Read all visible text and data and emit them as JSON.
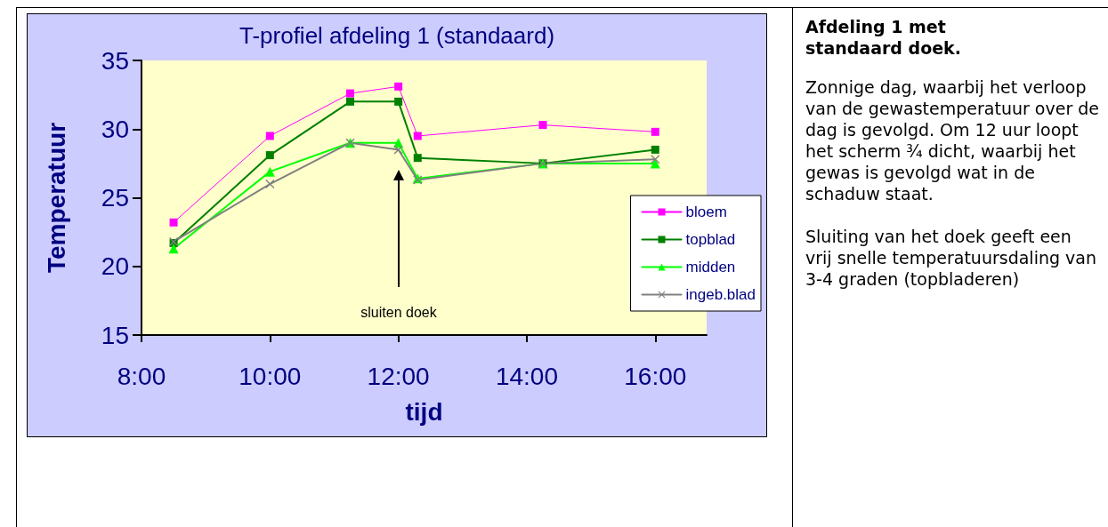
{
  "chart_data": {
    "type": "line",
    "title": "T-profiel afdeling 1 (standaard)",
    "xlabel": "tijd",
    "ylabel": "Temperatuur",
    "x": [
      8.5,
      10,
      11.25,
      12,
      12.3,
      14.25,
      16
    ],
    "series": [
      {
        "name": "bloem",
        "color": "#ff00ff",
        "marker": "square",
        "values": [
          23.2,
          29.5,
          32.6,
          33.1,
          29.5,
          30.3,
          29.8
        ]
      },
      {
        "name": "topblad",
        "color": "#008000",
        "marker": "square",
        "values": [
          21.7,
          28.1,
          32.0,
          32.0,
          27.9,
          27.5,
          28.5
        ]
      },
      {
        "name": "midden",
        "color": "#00ff00",
        "marker": "triangle",
        "values": [
          21.3,
          26.9,
          29.0,
          29.0,
          26.4,
          27.5,
          27.5
        ]
      },
      {
        "name": "ingeb.blad",
        "color": "#808080",
        "marker": "cross",
        "values": [
          21.8,
          26.0,
          29.0,
          28.5,
          26.3,
          27.5,
          27.8
        ]
      }
    ],
    "xlim": [
      8,
      16.8
    ],
    "xticks": [
      {
        "value": 8,
        "label": "8:00"
      },
      {
        "value": 10,
        "label": "10:00"
      },
      {
        "value": 12,
        "label": "12:00"
      },
      {
        "value": 14,
        "label": "14:00"
      },
      {
        "value": 16,
        "label": "16:00"
      }
    ],
    "ylim": [
      15,
      35
    ],
    "yticks": [
      15,
      20,
      25,
      30,
      35
    ],
    "grid": false,
    "legend": "right",
    "annotations": [
      "sluiten doek",
      "Afdeling 1 met standaard doek.",
      "Zonnige dag, waarbij het verloop van de gewastemperatuur over de dag is gevolgd. Om 12 uur loopt het scherm ¾ dicht, waarbij het gewas is gevolgd wat in de schaduw staat.",
      "Sluiting van het doek geeft een vrij snelle temperatuursdaling van 3-4 graden (topbladeren)"
    ]
  }
}
